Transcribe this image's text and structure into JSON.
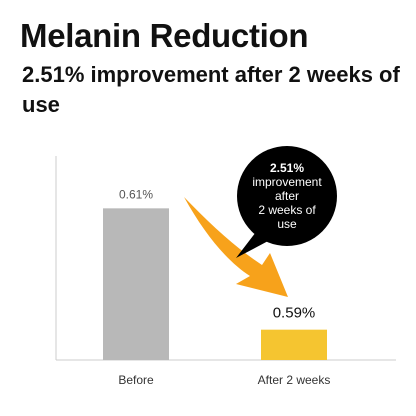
{
  "header": {
    "title": "Melanin Reduction",
    "subtitle": "2.51% improvement after 2 weeks of use"
  },
  "callout": {
    "lines": [
      "2.51%",
      "improvement",
      "after",
      "2 weeks of",
      "use"
    ]
  },
  "colors": {
    "before_bar": "#b8b8b8",
    "after_bar": "#f5c530",
    "arrow": "#f7a21b",
    "callout_bg": "#000000",
    "axis": "#cccccc"
  },
  "chart_data": {
    "type": "bar",
    "categories": [
      "Before",
      "After 2 weeks"
    ],
    "values": [
      0.61,
      0.59
    ],
    "data_labels": [
      "0.61%",
      "0.59%"
    ],
    "title": "Melanin Reduction",
    "xlabel": "",
    "ylabel": "",
    "ylim": [
      0.585,
      0.615
    ],
    "grid": false,
    "legend": "none"
  }
}
